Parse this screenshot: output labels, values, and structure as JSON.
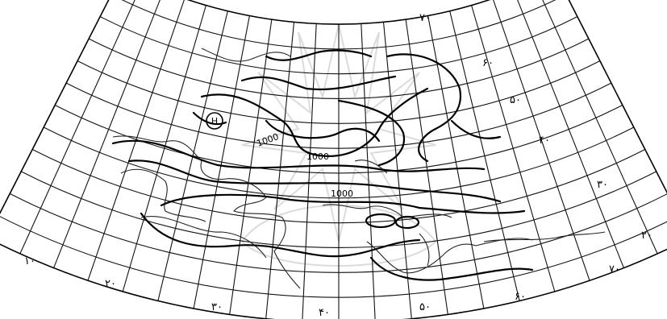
{
  "map": {
    "lat_labels": [
      {
        "text": "۷۰"
      },
      {
        "text": "۶۰"
      },
      {
        "text": "۵۰"
      },
      {
        "text": "۴۰"
      },
      {
        "text": "۳۰"
      },
      {
        "text": "۲۰"
      }
    ],
    "lon_labels": [
      {
        "text": "۱۰"
      },
      {
        "text": "۲۰"
      },
      {
        "text": "۳۰"
      },
      {
        "text": "۴۰"
      },
      {
        "text": "۵۰"
      },
      {
        "text": "۶۰"
      },
      {
        "text": "۷۰"
      }
    ],
    "isobar_labels": [
      {
        "text": "1000"
      },
      {
        "text": "1000"
      },
      {
        "text": "1000"
      }
    ],
    "pressure_symbols": [
      {
        "text": "H"
      }
    ]
  }
}
